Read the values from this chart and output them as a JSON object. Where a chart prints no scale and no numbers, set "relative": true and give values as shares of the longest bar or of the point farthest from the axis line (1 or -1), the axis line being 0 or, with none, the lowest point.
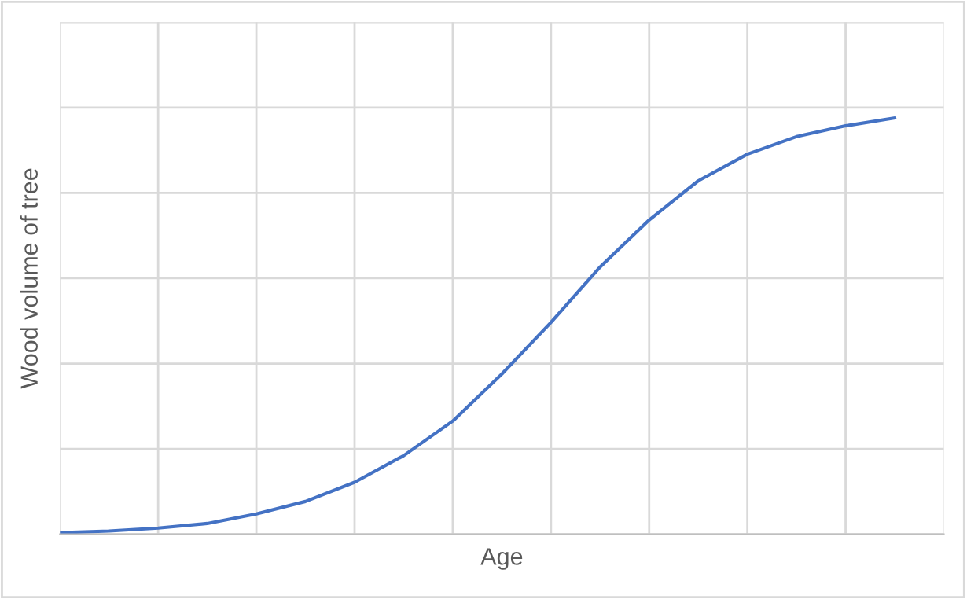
{
  "chart_data": {
    "type": "line",
    "relative": true,
    "xlabel": "Age",
    "ylabel": "Wood volume of tree",
    "categories": [
      null,
      null,
      null,
      null,
      null,
      null,
      null,
      null,
      null,
      null,
      null,
      null,
      null,
      null,
      null,
      null,
      null,
      null
    ],
    "series": [
      {
        "color": "#4472c4",
        "values": [
          0.004,
          0.008,
          0.015,
          0.026,
          0.049,
          0.079,
          0.125,
          0.189,
          0.272,
          0.385,
          0.509,
          0.642,
          0.755,
          0.849,
          0.913,
          0.955,
          0.981,
          1
        ]
      }
    ],
    "grid": true,
    "tick_labels": false,
    "legend": false,
    "marker": "none",
    "line_style": "solid"
  }
}
